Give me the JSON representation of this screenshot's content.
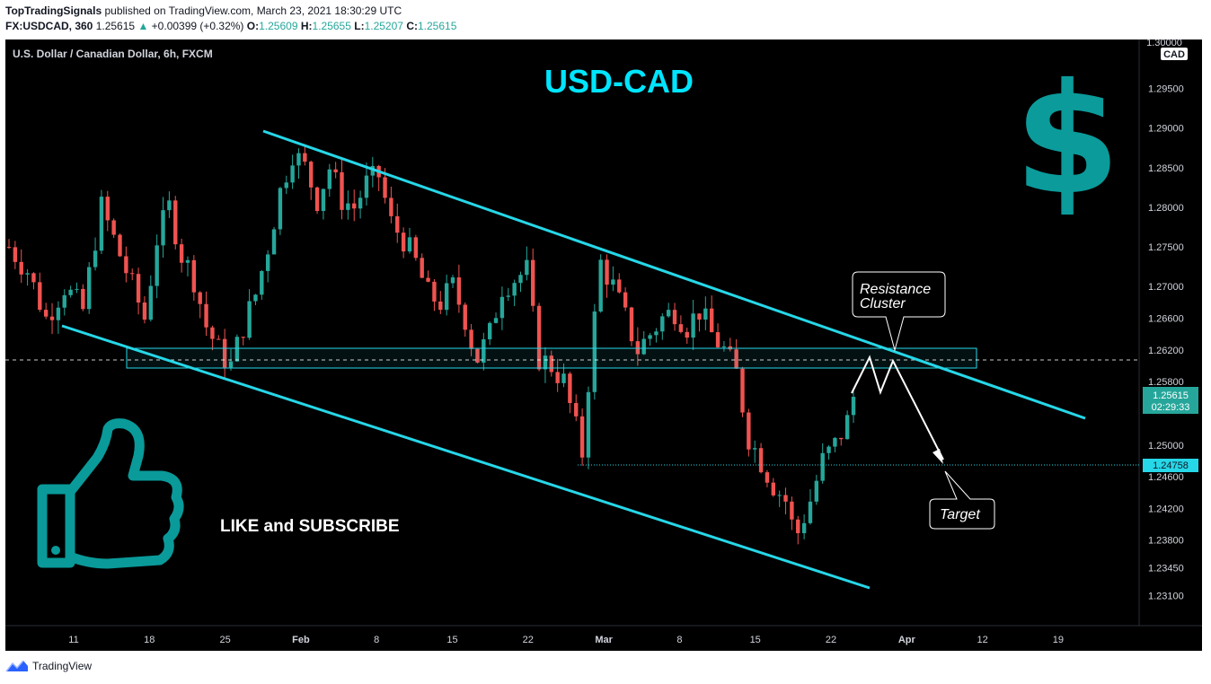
{
  "header": {
    "author": "TopTradingSignals",
    "published": "published on TradingView.com, March 23, 2021 18:30:29 UTC",
    "symbol": "FX:USDCAD, 360",
    "last": "1.25615",
    "change": "+0.00399 (+0.32%)",
    "o_label": "O:",
    "o": "1.25609",
    "h_label": "H:",
    "h": "1.25655",
    "l_label": "L:",
    "l": "1.25207",
    "c_label": "C:",
    "c": "1.25615"
  },
  "chart_legend": "U.S. Dollar / Canadian Dollar, 6h, FXCM",
  "overlay": {
    "title": "USD-CAD",
    "currency_symbol": "$",
    "cta": "LIKE and SUBSCRIBE",
    "resistance_label_1": "Resistance",
    "resistance_label_2": "Cluster",
    "target_label": "Target"
  },
  "price_axis": {
    "currency": "CAD",
    "top_partial": "1.30000",
    "current_price": "1.25615",
    "countdown": "02:29:33",
    "target_price": "1.24758"
  },
  "footer": {
    "brand": "TradingView"
  },
  "colors": {
    "background": "#000000",
    "up": "#26a69a",
    "down": "#ef5350",
    "channel": "#26d7e8",
    "title": "#00e5ff",
    "dollar": "#0b9b9b",
    "thumb": "#0a9a9a"
  },
  "chart_data": {
    "type": "candlestick",
    "title": "U.S. Dollar / Canadian Dollar, 6h, FXCM",
    "y_ticks": [
      "1.29500",
      "1.29000",
      "1.28500",
      "1.28000",
      "1.27500",
      "1.27000",
      "1.26600",
      "1.26200",
      "1.25800",
      "1.25000",
      "1.24600",
      "1.24200",
      "1.23800",
      "1.23450",
      "1.23100"
    ],
    "x_ticks": [
      "11",
      "18",
      "25",
      "Feb",
      "8",
      "15",
      "22",
      "Mar",
      "8",
      "15",
      "22",
      "Apr",
      "12",
      "19"
    ],
    "ylim": [
      1.228,
      1.3005
    ],
    "close_path": [
      [
        0,
        1.275
      ],
      [
        3,
        1.272
      ],
      [
        6,
        1.266
      ],
      [
        9,
        1.27
      ],
      [
        12,
        1.267
      ],
      [
        14,
        1.276
      ],
      [
        15,
        1.28
      ],
      [
        17,
        1.276
      ],
      [
        19,
        1.272
      ],
      [
        22,
        1.266
      ],
      [
        24,
        1.276
      ],
      [
        26,
        1.28
      ],
      [
        28,
        1.274
      ],
      [
        30,
        1.271
      ],
      [
        32,
        1.265
      ],
      [
        34,
        1.262
      ],
      [
        36,
        1.26
      ],
      [
        38,
        1.265
      ],
      [
        40,
        1.269
      ],
      [
        42,
        1.275
      ],
      [
        44,
        1.282
      ],
      [
        46,
        1.287
      ],
      [
        48,
        1.285
      ],
      [
        50,
        1.281
      ],
      [
        52,
        1.285
      ],
      [
        54,
        1.281
      ],
      [
        56,
        1.28
      ],
      [
        58,
        1.283
      ],
      [
        60,
        1.284
      ],
      [
        62,
        1.278
      ],
      [
        64,
        1.276
      ],
      [
        66,
        1.273
      ],
      [
        68,
        1.269
      ],
      [
        70,
        1.268
      ],
      [
        72,
        1.27
      ],
      [
        74,
        1.266
      ],
      [
        75,
        1.263
      ],
      [
        76,
        1.261
      ],
      [
        78,
        1.264
      ],
      [
        80,
        1.27
      ],
      [
        82,
        1.271
      ],
      [
        84,
        1.272
      ],
      [
        85,
        1.266
      ],
      [
        86,
        1.261
      ],
      [
        88,
        1.26
      ],
      [
        90,
        1.258
      ],
      [
        92,
        1.252
      ],
      [
        93,
        1.249
      ],
      [
        94,
        1.258
      ],
      [
        95,
        1.266
      ],
      [
        96,
        1.273
      ],
      [
        98,
        1.27
      ],
      [
        100,
        1.266
      ],
      [
        102,
        1.262
      ],
      [
        104,
        1.264
      ],
      [
        106,
        1.266
      ],
      [
        108,
        1.267
      ],
      [
        110,
        1.265
      ],
      [
        112,
        1.267
      ],
      [
        114,
        1.264
      ],
      [
        116,
        1.262
      ],
      [
        118,
        1.259
      ],
      [
        120,
        1.251
      ],
      [
        122,
        1.248
      ],
      [
        124,
        1.245
      ],
      [
        126,
        1.243
      ],
      [
        127,
        1.24
      ],
      [
        128,
        1.239
      ],
      [
        129,
        1.241
      ],
      [
        130,
        1.243
      ],
      [
        132,
        1.248
      ],
      [
        134,
        1.25
      ],
      [
        136,
        1.253
      ],
      [
        137,
        1.2561
      ]
    ],
    "annotations": {
      "resistance_zone": [
        1.2595,
        1.262
      ],
      "current_price_line": 1.25615,
      "target_price": 1.24758,
      "upper_channel": {
        "from": 1.2895,
        "to": 1.254
      },
      "lower_channel": {
        "from": 1.265,
        "to": 1.2325
      },
      "projection": [
        1.2561,
        1.2615,
        1.2588,
        1.2615,
        1.2475
      ]
    }
  }
}
